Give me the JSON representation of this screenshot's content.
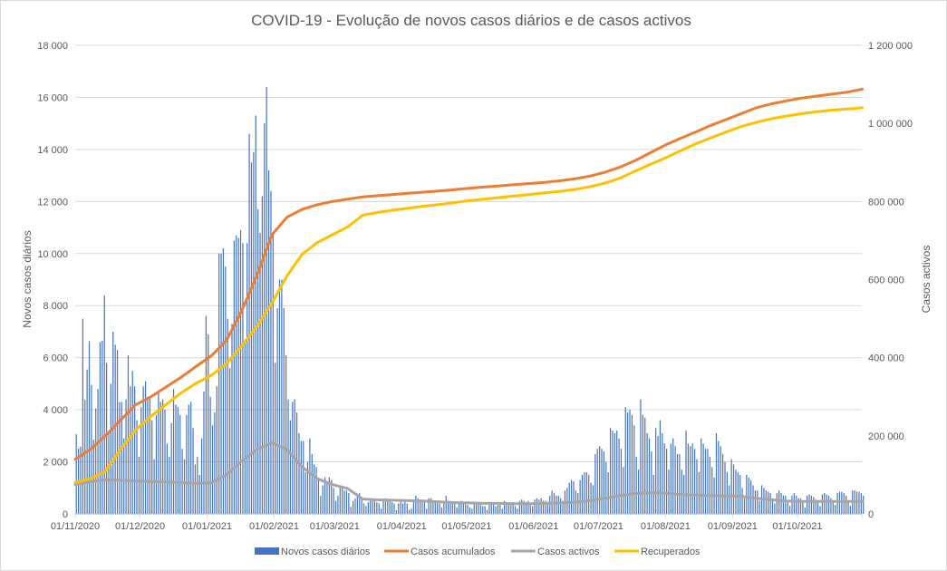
{
  "chart_data": {
    "type": "bar+line",
    "title": "COVID-19 - Evolução de novos casos diários e de casos activos",
    "ylabel": "Novos casos diários",
    "y2label": "Casos activos",
    "ylim": [
      0,
      18000
    ],
    "y2lim": [
      0,
      1200000
    ],
    "yticks": [
      "0",
      "2 000",
      "4 000",
      "6 000",
      "8 000",
      "10 000",
      "12 000",
      "14 000",
      "16 000",
      "18 000"
    ],
    "y2ticks": [
      "0",
      "200 000",
      "400 000",
      "600 000",
      "800 000",
      "1 000 000",
      "1 200 000"
    ],
    "x_start": "01/11/2020",
    "x_days": 365,
    "xticks": [
      {
        "label": "01/11/2020",
        "day": 0
      },
      {
        "label": "01/12/2020",
        "day": 30
      },
      {
        "label": "01/01/2021",
        "day": 61
      },
      {
        "label": "01/02/2021",
        "day": 92
      },
      {
        "label": "01/03/2021",
        "day": 120
      },
      {
        "label": "01/04/2021",
        "day": 151
      },
      {
        "label": "01/05/2021",
        "day": 181
      },
      {
        "label": "01/06/2021",
        "day": 212
      },
      {
        "label": "01/07/2021",
        "day": 242
      },
      {
        "label": "01/08/2021",
        "day": 273
      },
      {
        "label": "01/09/2021",
        "day": 304
      },
      {
        "label": "01/10/2021",
        "day": 334
      }
    ],
    "grid": true,
    "legend_position": "bottom",
    "bar_series": {
      "name": "Novos casos diários",
      "color": "#4472c4",
      "axis": "left",
      "daily_values": [
        3060,
        2506,
        2590,
        7497,
        4380,
        5550,
        6640,
        4950,
        2850,
        4050,
        4800,
        6600,
        6650,
        8400,
        5800,
        3100,
        5000,
        7000,
        6500,
        6300,
        4300,
        4300,
        2900,
        4400,
        6100,
        4900,
        5500,
        4900,
        3600,
        2200,
        4100,
        4900,
        5100,
        4500,
        4500,
        3600,
        2100,
        3800,
        4700,
        4300,
        4400,
        4000,
        2700,
        2200,
        3500,
        4800,
        4200,
        4100,
        3800,
        2500,
        2100,
        3800,
        4200,
        4300,
        3300,
        1900,
        2200,
        1500,
        2900,
        4700,
        7600,
        6900,
        4500,
        3400,
        3900,
        4900,
        10000,
        10000,
        10200,
        9500,
        7500,
        5600,
        7300,
        10500,
        10700,
        10600,
        10900,
        10400,
        6700,
        10400,
        14600,
        13500,
        13900,
        15300,
        11700,
        10800,
        12200,
        15000,
        16400,
        13200,
        12400,
        10800,
        5800,
        7900,
        9000,
        9000,
        7900,
        6100,
        4400,
        3600,
        4300,
        4400,
        3900,
        3100,
        2800,
        2800,
        1600,
        2000,
        2900,
        2300,
        1900,
        1800,
        1300,
        690,
        1100,
        1400,
        1200,
        1400,
        1300,
        1000,
        500,
        700,
        1100,
        1000,
        900,
        900,
        800,
        270,
        500,
        600,
        700,
        800,
        600,
        400,
        300,
        450,
        600,
        500,
        500,
        450,
        400,
        200,
        500,
        600,
        500,
        550,
        450,
        400,
        150,
        400,
        500,
        400,
        550,
        400,
        150,
        200,
        500,
        700,
        600,
        550,
        500,
        450,
        200,
        600,
        600,
        500,
        500,
        450,
        400,
        250,
        500,
        700,
        500,
        400,
        450,
        400,
        250,
        400,
        500,
        450,
        400,
        350,
        250,
        200,
        400,
        450,
        400,
        350,
        300,
        300,
        150,
        350,
        400,
        400,
        300,
        350,
        350,
        200,
        500,
        450,
        400,
        400,
        450,
        300,
        200,
        500,
        550,
        500,
        450,
        500,
        400,
        300,
        550,
        600,
        550,
        600,
        500,
        500,
        400,
        700,
        900,
        800,
        700,
        700,
        600,
        500,
        900,
        1000,
        1200,
        1300,
        1250,
        900,
        800,
        1300,
        1500,
        1600,
        1600,
        1500,
        1200,
        1100,
        2300,
        2500,
        2600,
        2500,
        2400,
        2000,
        1600,
        3300,
        3200,
        3100,
        3200,
        2900,
        2500,
        1800,
        4100,
        3900,
        4000,
        3800,
        3400,
        2200,
        1700,
        4400,
        3800,
        3700,
        3100,
        2900,
        2400,
        1500,
        3300,
        3000,
        3600,
        3100,
        2700,
        2500,
        1700,
        2700,
        2900,
        2600,
        2300,
        2300,
        1700,
        1500,
        3200,
        2700,
        2600,
        2700,
        2500,
        2100,
        1600,
        2900,
        2700,
        2500,
        2500,
        2200,
        1800,
        1400,
        3100,
        2800,
        2600,
        2300,
        2000,
        1600,
        1100,
        2100,
        1900,
        1700,
        1600,
        1500,
        1000,
        600,
        1500,
        1400,
        1300,
        1100,
        900,
        900,
        500,
        1100,
        1000,
        900,
        850,
        800,
        600,
        400,
        800,
        900,
        800,
        700,
        700,
        500,
        300,
        700,
        800,
        700,
        600,
        600,
        500,
        250,
        700,
        750,
        700,
        650,
        550,
        450,
        300,
        750,
        800,
        750,
        700,
        600,
        450,
        350,
        800,
        850,
        850,
        800,
        700,
        500,
        300,
        900,
        900,
        850,
        850,
        800,
        700
      ]
    },
    "line_sample_step_days": 7,
    "line_series": [
      {
        "name": "Casos acumulados",
        "color": "#ed7d31",
        "axis": "right",
        "values": [
          140000,
          165000,
          200000,
          240000,
          280000,
          300000,
          325000,
          350000,
          378000,
          405000,
          445000,
          520000,
          610000,
          715000,
          760000,
          780000,
          792000,
          800000,
          806000,
          812000,
          815000,
          818000,
          821000,
          824000,
          827000,
          830000,
          834000,
          837000,
          840000,
          843000,
          846000,
          849000,
          853000,
          858000,
          865000,
          875000,
          888000,
          905000,
          925000,
          945000,
          962000,
          978000,
          995000,
          1010000,
          1025000,
          1040000,
          1050000,
          1058000,
          1065000,
          1070000,
          1075000,
          1080000,
          1088000
        ]
      },
      {
        "name": "Casos activos",
        "color": "#a5a5a5",
        "axis": "right",
        "values": [
          75000,
          82000,
          88000,
          86000,
          84000,
          83000,
          82000,
          80000,
          78000,
          80000,
          100000,
          135000,
          165000,
          182000,
          165000,
          120000,
          90000,
          75000,
          65000,
          38000,
          36000,
          35000,
          34000,
          33000,
          31000,
          29000,
          28000,
          27000,
          27000,
          26000,
          26000,
          27000,
          28000,
          30000,
          34000,
          40000,
          47000,
          52000,
          54000,
          53000,
          50000,
          48000,
          47000,
          46000,
          45000,
          40000,
          36000,
          33000,
          32000,
          32000,
          32000,
          32000,
          32000
        ]
      },
      {
        "name": "Recuperados",
        "color": "#ffc000",
        "axis": "right",
        "values": [
          80000,
          90000,
          110000,
          165000,
          215000,
          250000,
          280000,
          310000,
          335000,
          355000,
          385000,
          430000,
          480000,
          540000,
          610000,
          665000,
          695000,
          715000,
          735000,
          765000,
          772000,
          778000,
          783000,
          788000,
          792000,
          797000,
          802000,
          806000,
          810000,
          814000,
          818000,
          822000,
          826000,
          831000,
          838000,
          847000,
          860000,
          878000,
          895000,
          912000,
          930000,
          948000,
          963000,
          978000,
          992000,
          1003000,
          1012000,
          1019000,
          1025000,
          1030000,
          1034000,
          1037000,
          1040000
        ]
      }
    ],
    "legend": [
      "Novos casos diários",
      "Casos acumulados",
      "Casos activos",
      "Recuperados"
    ]
  }
}
